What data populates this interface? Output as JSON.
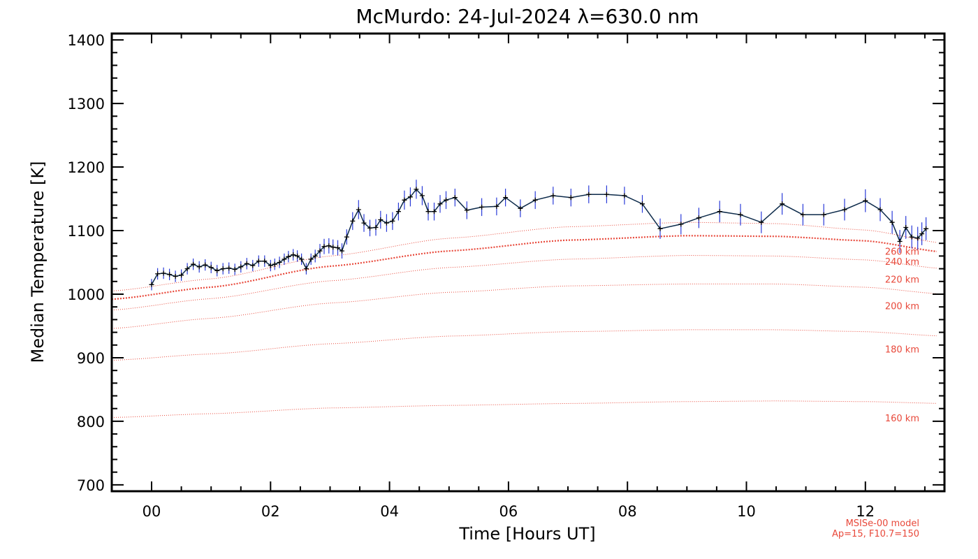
{
  "chart_data": {
    "type": "line",
    "title": "McMurdo: 24-Jul-2024 λ=630.0 nm",
    "xlabel": "Time [Hours UT]",
    "ylabel": "Median Temperature [K]",
    "xlim": [
      -0.67,
      13.33
    ],
    "ylim": [
      690,
      1410
    ],
    "x_ticks": [
      0,
      2,
      4,
      6,
      8,
      10,
      12
    ],
    "x_tick_labels": [
      "00",
      "02",
      "04",
      "06",
      "08",
      "10",
      "12"
    ],
    "y_ticks": [
      700,
      800,
      900,
      1000,
      1100,
      1200,
      1300,
      1400
    ],
    "y_tick_labels": [
      "700",
      "800",
      "900",
      "1000",
      "1100",
      "1200",
      "1300",
      "1400"
    ],
    "grid": false,
    "colors": {
      "measurement_line": "#0c2a4a",
      "error_bar": "#2a3bd8",
      "marker": "#000000",
      "model": "#e8483a"
    },
    "series": [
      {
        "style": "measurement",
        "x": [
          0.0,
          0.1,
          0.2,
          0.3,
          0.4,
          0.5,
          0.6,
          0.7,
          0.8,
          0.9,
          1.0,
          1.1,
          1.2,
          1.3,
          1.4,
          1.5,
          1.6,
          1.7,
          1.8,
          1.9,
          2.0,
          2.07,
          2.15,
          2.23,
          2.3,
          2.38,
          2.45,
          2.52,
          2.6,
          2.68,
          2.75,
          2.83,
          2.9,
          2.98,
          3.05,
          3.13,
          3.2,
          3.28,
          3.38,
          3.48,
          3.57,
          3.67,
          3.77,
          3.85,
          3.95,
          4.05,
          4.15,
          4.25,
          4.35,
          4.45,
          4.55,
          4.65,
          4.75,
          4.85,
          4.95,
          5.1,
          5.3,
          5.55,
          5.8,
          5.95,
          6.2,
          6.45,
          6.75,
          7.05,
          7.35,
          7.65,
          7.95,
          8.25,
          8.55,
          8.9,
          9.2,
          9.55,
          9.9,
          10.25,
          10.6,
          10.95,
          11.3,
          11.65,
          12.0,
          12.25,
          12.45,
          12.58,
          12.68,
          12.78,
          12.88,
          12.95,
          13.02
        ],
        "y": [
          1015,
          1032,
          1033,
          1031,
          1028,
          1030,
          1040,
          1047,
          1043,
          1046,
          1042,
          1037,
          1040,
          1041,
          1039,
          1043,
          1048,
          1045,
          1052,
          1052,
          1045,
          1047,
          1050,
          1055,
          1059,
          1062,
          1060,
          1055,
          1040,
          1055,
          1060,
          1068,
          1075,
          1076,
          1074,
          1073,
          1068,
          1090,
          1115,
          1133,
          1112,
          1104,
          1105,
          1117,
          1112,
          1115,
          1130,
          1148,
          1153,
          1165,
          1155,
          1130,
          1130,
          1142,
          1148,
          1152,
          1132,
          1137,
          1138,
          1152,
          1135,
          1148,
          1155,
          1152,
          1157,
          1157,
          1155,
          1142,
          1103,
          1110,
          1120,
          1130,
          1125,
          1113,
          1142,
          1125,
          1125,
          1133,
          1147,
          1133,
          1113,
          1083,
          1105,
          1090,
          1088,
          1095,
          1103
        ],
        "error": [
          9,
          9,
          9,
          9,
          9,
          9,
          9,
          9,
          9,
          9,
          9,
          9,
          9,
          9,
          9,
          9,
          9,
          9,
          9,
          9,
          9,
          9,
          9,
          9,
          9,
          9,
          9,
          9,
          9,
          9,
          10,
          11,
          12,
          12,
          12,
          12,
          12,
          12,
          14,
          15,
          14,
          13,
          13,
          14,
          14,
          14,
          14,
          15,
          15,
          15,
          15,
          14,
          14,
          14,
          14,
          14,
          14,
          14,
          14,
          14,
          14,
          14,
          14,
          14,
          14,
          14,
          14,
          14,
          16,
          16,
          16,
          17,
          17,
          17,
          17,
          17,
          17,
          17,
          18,
          18,
          18,
          18,
          18,
          18,
          18,
          18,
          18
        ]
      },
      {
        "name": "160 km",
        "style": "model",
        "x": [
          -0.67,
          1.0,
          3.0,
          5.0,
          7.0,
          9.0,
          10.5,
          12.0,
          13.33
        ],
        "y": [
          806,
          812,
          821,
          825,
          828,
          831,
          832,
          831,
          828
        ]
      },
      {
        "name": "180 km",
        "style": "model",
        "x": [
          -0.67,
          1.0,
          3.0,
          5.0,
          7.0,
          9.0,
          10.5,
          12.0,
          13.33
        ],
        "y": [
          896,
          906,
          922,
          934,
          941,
          944,
          944,
          941,
          934
        ]
      },
      {
        "name": "200 km",
        "style": "model",
        "x": [
          -0.67,
          1.0,
          3.0,
          5.0,
          7.0,
          9.0,
          10.5,
          12.0,
          13.33
        ],
        "y": [
          946,
          962,
          986,
          1003,
          1013,
          1016,
          1016,
          1011,
          1000
        ]
      },
      {
        "name": "220 km",
        "style": "model",
        "x": [
          -0.67,
          1.0,
          3.0,
          5.0,
          7.0,
          9.0,
          10.5,
          12.0,
          13.33
        ],
        "y": [
          975,
          993,
          1021,
          1042,
          1055,
          1061,
          1060,
          1054,
          1040
        ]
      },
      {
        "name": "240 km",
        "style": "model",
        "highlight": true,
        "x": [
          -0.67,
          1.0,
          3.0,
          5.0,
          7.0,
          9.0,
          10.5,
          12.0,
          13.33
        ],
        "y": [
          992,
          1011,
          1044,
          1068,
          1085,
          1092,
          1091,
          1084,
          1066
        ]
      },
      {
        "name": "260 km",
        "style": "model",
        "x": [
          -0.67,
          1.0,
          3.0,
          5.0,
          7.0,
          9.0,
          10.5,
          12.0,
          13.33
        ],
        "y": [
          1005,
          1024,
          1060,
          1088,
          1106,
          1113,
          1111,
          1101,
          1080
        ]
      }
    ],
    "model_note": [
      "MSISe-00 model",
      "Ap=15, F10.7=150"
    ]
  }
}
